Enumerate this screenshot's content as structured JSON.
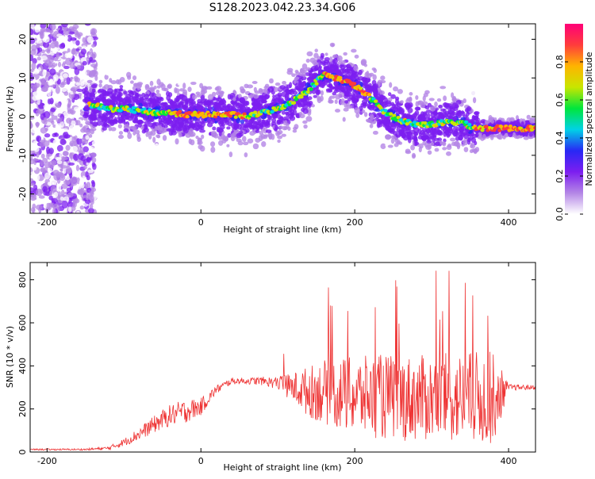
{
  "title": "S128.2023.042.23.34.G06",
  "chart_data": [
    {
      "type": "heatmap",
      "xlabel": "Height of straight line (km)",
      "ylabel": "Frequency (Hz)",
      "xlim": [
        -222,
        435
      ],
      "ylim": [
        -25,
        24
      ],
      "xticks": [
        -200,
        0,
        200,
        400
      ],
      "yticks": [
        20,
        10,
        0,
        -10,
        -20
      ],
      "colorbar": {
        "label": "Normalized spectral amplitude",
        "range": [
          0,
          1
        ],
        "ticks": [
          "0.0",
          "0.2",
          "0.4",
          "0.6",
          "0.8"
        ],
        "colors": [
          "#ffffff",
          "#b486e6",
          "#7c1ef0",
          "#2828f5",
          "#00d2e6",
          "#00e63c",
          "#c8e600",
          "#ffb400",
          "#ff3c3c",
          "#ff0078"
        ]
      },
      "ridge": {
        "x": [
          -140,
          -120,
          -100,
          -80,
          -60,
          -40,
          -20,
          0,
          20,
          40,
          60,
          80,
          100,
          120,
          140,
          160,
          175,
          190,
          200,
          220,
          240,
          260,
          280,
          300,
          320,
          340,
          350,
          360,
          380,
          400,
          435
        ],
        "y": [
          3,
          2,
          2,
          1.5,
          1,
          1,
          0.5,
          0.5,
          0.5,
          0.5,
          0,
          1,
          2,
          4,
          7,
          11,
          10,
          9,
          8,
          5,
          1,
          -1,
          -2,
          -2,
          -1.5,
          -1.5,
          -2.5,
          -3,
          -3,
          -3,
          -3
        ]
      }
    },
    {
      "type": "line",
      "xlabel": "Height of straight line (km)",
      "ylabel": "SNR (10 * v/v)",
      "xlim": [
        -222,
        435
      ],
      "ylim": [
        0,
        880
      ],
      "xticks": [
        -200,
        0,
        200,
        400
      ],
      "yticks": [
        0,
        200,
        400,
        600,
        800
      ],
      "color": "#ee3333",
      "envelope": {
        "x": [
          -222,
          -150,
          -120,
          -100,
          -80,
          -60,
          -40,
          -20,
          0,
          20,
          40,
          60,
          80,
          100,
          120,
          140,
          160,
          180,
          200,
          220,
          240,
          260,
          280,
          300,
          320,
          340,
          360,
          380,
          400,
          435
        ],
        "mean": [
          12,
          12,
          18,
          45,
          85,
          130,
          170,
          190,
          210,
          290,
          330,
          330,
          330,
          320,
          300,
          280,
          280,
          270,
          260,
          260,
          255,
          250,
          250,
          250,
          250,
          250,
          250,
          250,
          300,
          300
        ],
        "spread": [
          3,
          4,
          8,
          18,
          30,
          40,
          50,
          55,
          40,
          20,
          15,
          15,
          20,
          30,
          70,
          120,
          150,
          170,
          180,
          190,
          200,
          200,
          200,
          200,
          210,
          210,
          220,
          220,
          15,
          10
        ]
      }
    }
  ]
}
